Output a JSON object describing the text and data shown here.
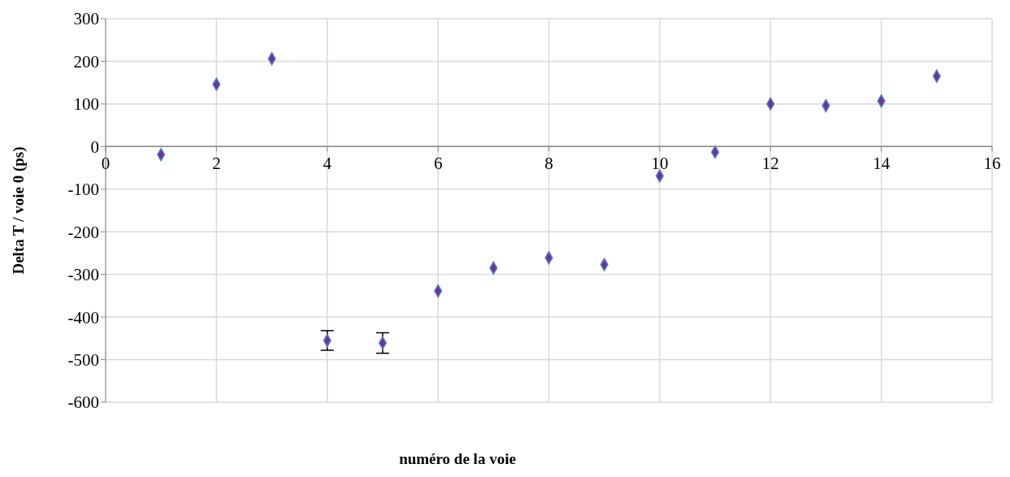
{
  "chart_data": {
    "type": "scatter",
    "xlabel": "numéro de la voie",
    "ylabel": "Delta T / voie 0 (ps)",
    "x": [
      1,
      2,
      3,
      4,
      5,
      6,
      7,
      8,
      9,
      10,
      11,
      12,
      13,
      14,
      15
    ],
    "series": [
      {
        "color": "#7030a0",
        "values": [
          -19,
          146,
          206,
          -455,
          -461,
          -339,
          -285,
          -261,
          -277,
          -69,
          -13,
          100,
          96,
          107,
          165
        ],
        "errors": [
          null,
          null,
          null,
          23,
          24,
          null,
          null,
          null,
          null,
          null,
          null,
          null,
          null,
          null,
          null
        ]
      }
    ],
    "xlim": [
      0,
      16
    ],
    "xticks": [
      0,
      2,
      4,
      6,
      8,
      10,
      12,
      14,
      16
    ],
    "ylim": [
      -600,
      300
    ],
    "yticks": [
      -600,
      -500,
      -400,
      -300,
      -200,
      -100,
      0,
      100,
      200,
      300
    ],
    "grid": true,
    "marker": "diamond",
    "legend": false
  }
}
